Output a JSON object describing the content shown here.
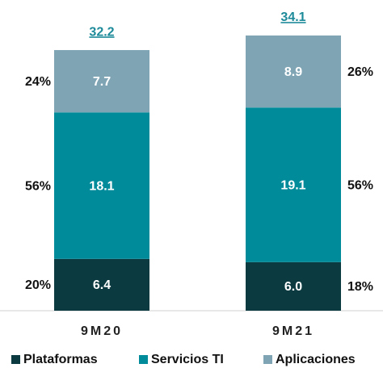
{
  "chart_data": {
    "type": "stacked_bar",
    "categories": [
      "9M20",
      "9M21"
    ],
    "series": [
      {
        "name": "Plataformas",
        "color": "#0b3a40",
        "values": [
          6.4,
          6.0
        ],
        "value_labels": [
          "6.4",
          "6.0"
        ],
        "shares": [
          20,
          18
        ],
        "share_labels": [
          "20%",
          "18%"
        ]
      },
      {
        "name": "Servicios TI",
        "color": "#008b9b",
        "values": [
          18.1,
          19.1
        ],
        "shares": [
          56,
          56
        ],
        "share_labels": [
          "56%",
          "56%"
        ]
      },
      {
        "name": "Aplicaciones",
        "color": "#7fa5b5",
        "values": [
          7.7,
          8.9
        ],
        "shares": [
          24,
          26
        ],
        "share_labels": [
          "24%",
          "26%"
        ]
      }
    ],
    "totals": [
      32.2,
      34.1
    ],
    "totals_color": "#1d8a9a"
  }
}
